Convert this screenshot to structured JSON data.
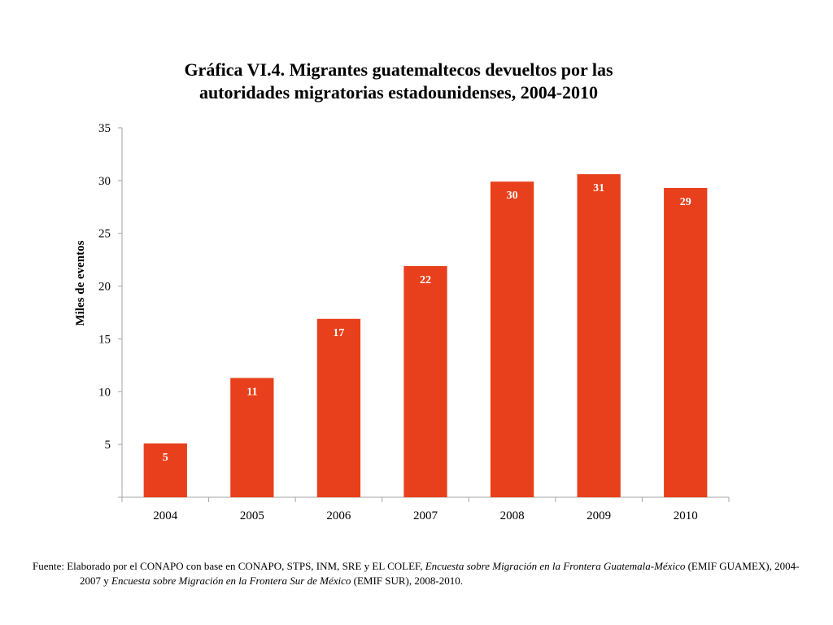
{
  "chart_data": {
    "type": "bar",
    "title_line1": "Gráfica VI.4. Migrantes guatemaltecos devueltos por las",
    "title_line2": "autoridades migratorias estadounidenses, 2004-2010",
    "ylabel": "Miles de eventos",
    "xlabel": "",
    "categories": [
      "2004",
      "2005",
      "2006",
      "2007",
      "2008",
      "2009",
      "2010"
    ],
    "values": [
      5.1,
      11.3,
      16.9,
      21.9,
      29.9,
      30.6,
      29.3
    ],
    "data_labels": [
      "5",
      "11",
      "17",
      "22",
      "30",
      "31",
      "29"
    ],
    "ylim": [
      0,
      35
    ],
    "yticks": [
      5,
      10,
      15,
      20,
      25,
      30,
      35
    ],
    "ytick_labels": [
      "5",
      "10",
      "15",
      "20",
      "25",
      "30",
      "35"
    ],
    "grid": false,
    "legend": "none",
    "bar_color": "#e8401c",
    "data_label_color": "#ffffff"
  },
  "source": {
    "prefix": "Fuente: Elaborado por el CONAPO con base en CONAPO, STPS, INM, SRE y EL COLEF, ",
    "italic1": "Encuesta sobre Migración en la Frontera Guatemala-México",
    "mid": " (EMIF GUAMEX), 2004-2007  y ",
    "italic2": "Encuesta sobre Migración en la Frontera Sur de México",
    "suffix": " (EMIF SUR), 2008-2010."
  }
}
